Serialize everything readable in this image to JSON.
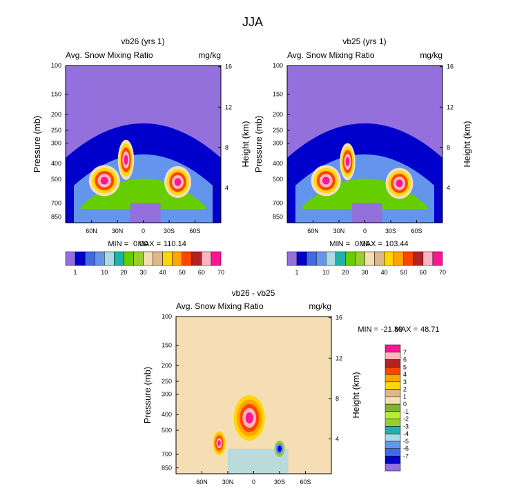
{
  "figure_title": "JJA",
  "colors": {
    "abs_scale": [
      "#9370db",
      "#0000cd",
      "#4169e1",
      "#6495ed",
      "#add8e6",
      "#20b2aa",
      "#66cd00",
      "#9acd32",
      "#f5deb3",
      "#deb887",
      "#ffd700",
      "#ffa500",
      "#ff4500",
      "#b22222",
      "#ffb6c1",
      "#ff1493"
    ],
    "diff_scale": [
      "#9370db",
      "#0000cd",
      "#4169e1",
      "#6495ed",
      "#add8e6",
      "#20b2aa",
      "#9acd32",
      "#b3ee3a",
      "#7fb32e",
      "#f5deb3",
      "#deb887",
      "#ffd700",
      "#ffa500",
      "#ff4500",
      "#b22222",
      "#ffb6c1",
      "#ff1493"
    ]
  },
  "chart_data": [
    {
      "type": "heatmap",
      "id": "vb26",
      "title": "vb26 (yrs 1)",
      "left_label": "Avg. Snow Mixing Ratio",
      "right_label": "mg/kg",
      "xlabel": "",
      "ylabel": "Pressure (mb)",
      "y2label": "Height (km)",
      "x_ticks": [
        "60N",
        "30N",
        "0",
        "30S",
        "60S"
      ],
      "x_tick_values": [
        60,
        30,
        0,
        -30,
        -60
      ],
      "xlim": [
        90,
        -90
      ],
      "y_ticks": [
        "100",
        "150",
        "200",
        "250",
        "300",
        "400",
        "500",
        "700",
        "850"
      ],
      "y_tick_values": [
        100,
        150,
        200,
        250,
        300,
        400,
        500,
        700,
        850
      ],
      "ylim": [
        100,
        925
      ],
      "y2_ticks": [
        "16",
        "12",
        "8",
        "4"
      ],
      "y2_tick_values": [
        16,
        12,
        8,
        4
      ],
      "min_label": "MIN =",
      "min": "0.00",
      "max_label": "MAX =",
      "max": "110.14",
      "levels": [
        1,
        2,
        5,
        10,
        15,
        20,
        25,
        30,
        35,
        40,
        45,
        50,
        55,
        60,
        65,
        70
      ],
      "colorbar_labels": [
        "1",
        "10",
        "20",
        "30",
        "40",
        "50",
        "60",
        "70"
      ],
      "features": [
        {
          "lat": 45,
          "p": 510,
          "value": 110,
          "lat_width": 18,
          "p_width": 220
        },
        {
          "lat": 20,
          "p": 380,
          "value": 95,
          "lat_width": 10,
          "p_width": 210
        },
        {
          "lat": -40,
          "p": 520,
          "value": 105,
          "lat_width": 16,
          "p_width": 230
        }
      ]
    },
    {
      "type": "heatmap",
      "id": "vb25",
      "title": "vb25 (yrs 1)",
      "left_label": "Avg. Snow Mixing Ratio",
      "right_label": "mg/kg",
      "xlabel": "",
      "ylabel": "Pressure (mb)",
      "y2label": "Height (km)",
      "x_ticks": [
        "60N",
        "30N",
        "0",
        "30S",
        "60S"
      ],
      "x_tick_values": [
        60,
        30,
        0,
        -30,
        -60
      ],
      "xlim": [
        90,
        -90
      ],
      "y_ticks": [
        "100",
        "150",
        "200",
        "250",
        "300",
        "400",
        "500",
        "700",
        "850"
      ],
      "y_tick_values": [
        100,
        150,
        200,
        250,
        300,
        400,
        500,
        700,
        850
      ],
      "ylim": [
        100,
        925
      ],
      "y2_ticks": [
        "16",
        "12",
        "8",
        "4"
      ],
      "y2_tick_values": [
        16,
        12,
        8,
        4
      ],
      "min_label": "MIN =",
      "min": "0.00",
      "max_label": "MAX =",
      "max": "103.44",
      "levels": [
        1,
        2,
        5,
        10,
        15,
        20,
        25,
        30,
        35,
        40,
        45,
        50,
        55,
        60,
        65,
        70
      ],
      "colorbar_labels": [
        "1",
        "10",
        "20",
        "30",
        "40",
        "50",
        "60",
        "70"
      ],
      "features": [
        {
          "lat": 45,
          "p": 510,
          "value": 95,
          "lat_width": 18,
          "p_width": 220
        },
        {
          "lat": 20,
          "p": 390,
          "value": 80,
          "lat_width": 10,
          "p_width": 200
        },
        {
          "lat": -40,
          "p": 530,
          "value": 103,
          "lat_width": 16,
          "p_width": 230
        }
      ]
    },
    {
      "type": "heatmap",
      "id": "diff",
      "title": "vb26 - vb25",
      "left_label": "Avg. Snow Mixing Ratio",
      "right_label": "mg/kg",
      "xlabel": "",
      "ylabel": "Pressure (mb)",
      "y2label": "Height (km)",
      "x_ticks": [
        "60N",
        "30N",
        "0",
        "30S",
        "60S"
      ],
      "x_tick_values": [
        60,
        30,
        0,
        -30,
        -60
      ],
      "xlim": [
        90,
        -90
      ],
      "y_ticks": [
        "100",
        "150",
        "200",
        "250",
        "300",
        "400",
        "500",
        "700",
        "850"
      ],
      "y_tick_values": [
        100,
        150,
        200,
        250,
        300,
        400,
        500,
        700,
        850
      ],
      "ylim": [
        100,
        925
      ],
      "y2_ticks": [
        "16",
        "12",
        "8",
        "4"
      ],
      "y2_tick_values": [
        16,
        12,
        8,
        4
      ],
      "min_label": "MIN =",
      "min": "-21.89",
      "max_label": "MAX =",
      "max": "48.71",
      "levels": [
        -7,
        -6,
        -5,
        -4,
        -3,
        -2,
        -1,
        0,
        1,
        2,
        3,
        4,
        5,
        6,
        7
      ],
      "colorbar_labels": [
        "7",
        "6",
        "5",
        "4",
        "3",
        "2",
        "1",
        "0",
        "-1",
        "-2",
        "-3",
        "-4",
        "-5",
        "-6",
        "-7"
      ],
      "features": [
        {
          "lat": 5,
          "p": 420,
          "value": 48.7,
          "lat_width": 18,
          "p_width": 260
        },
        {
          "lat": 40,
          "p": 600,
          "value": 20,
          "lat_width": 10,
          "p_width": 200
        },
        {
          "lat": -30,
          "p": 650,
          "value": -21.9,
          "lat_width": 8,
          "p_width": 150
        }
      ]
    }
  ]
}
